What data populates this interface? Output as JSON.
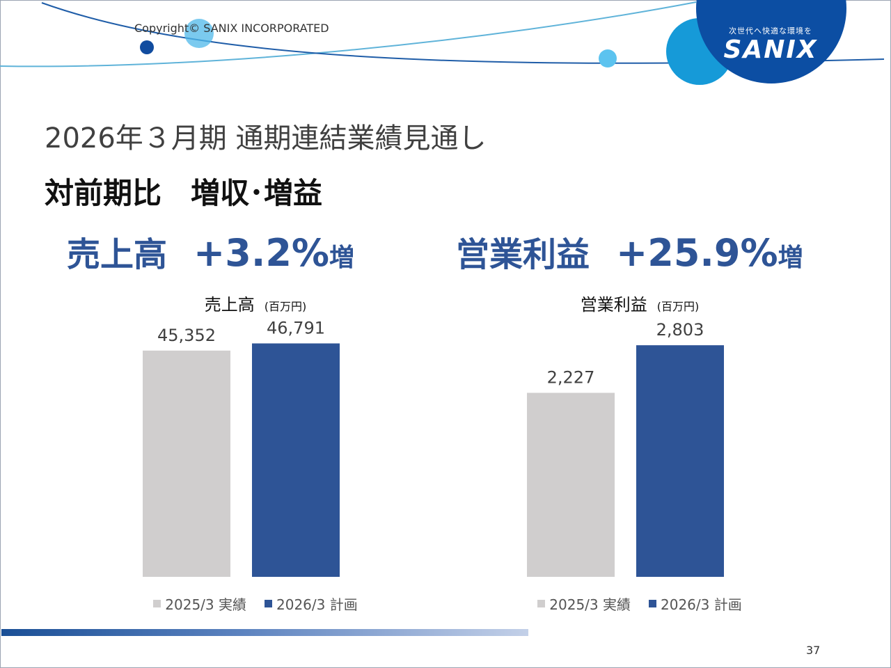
{
  "header": {
    "copyright": "Copyright©  SANIX INCORPORATED",
    "logo_tagline": "次世代へ快適な環境を",
    "logo_name": "SANIX"
  },
  "slide": {
    "title": "2026年３月期 通期連結業績見通し",
    "subtitle": "対前期比　増収･増益",
    "metrics": [
      {
        "label": "売上高",
        "value": "+3.2%",
        "suffix": "増"
      },
      {
        "label": "営業利益",
        "value": "+25.9%",
        "suffix": "増"
      }
    ],
    "page_number": "37"
  },
  "colors": {
    "accent": "#2e5496",
    "prior_bar": "#d0cece",
    "plan_bar": "#2e5496"
  },
  "chart_data": [
    {
      "type": "bar",
      "title": "売上高",
      "unit": "(百万円)",
      "categories": [
        "2025/3 実績",
        "2026/3 計画"
      ],
      "values": [
        45352,
        46791
      ],
      "value_labels": [
        "45,352",
        "46,791"
      ],
      "ylim": [
        0,
        53000
      ],
      "grid": false,
      "legend": "bottom",
      "legend_entries": [
        "2025/3 実績",
        "2026/3 計画"
      ]
    },
    {
      "type": "bar",
      "title": "営業利益",
      "unit": "(百万円)",
      "categories": [
        "2025/3 実績",
        "2026/3 計画"
      ],
      "values": [
        2227,
        2803
      ],
      "value_labels": [
        "2,227",
        "2,803"
      ],
      "ylim": [
        0,
        3200
      ],
      "grid": false,
      "legend": "bottom",
      "legend_entries": [
        "2025/3 実績",
        "2026/3 計画"
      ]
    }
  ]
}
